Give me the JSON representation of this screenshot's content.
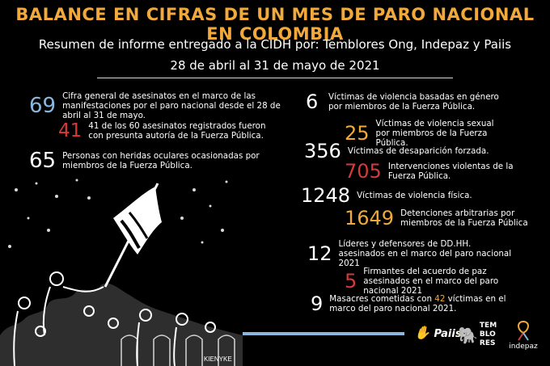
{
  "header": {
    "title": "BALANCE EN CIFRAS DE UN MES DE PARO NACIONAL EN COLOMBIA",
    "subtitle": "Resumen de informe entregado a la CIDH por: Temblores Ong, Indepaz y Paiis",
    "dates": "28 de abril al 31 de mayo de 2021"
  },
  "left_stats": [
    {
      "value": "69",
      "text": "Cifra general de asesinatos en el marco de las manifestaciones por el paro nacional desde el 28 de abril al 31 de mayo.",
      "color": "#8bb6df"
    },
    {
      "value": "41",
      "text": "41 de los 60 asesinatos registrados fueron con presunta autoría de la Fuerza Pública.",
      "color": "#d43a3a"
    },
    {
      "value": "65",
      "text": "Personas con heridas oculares ocasionadas por miembros de la Fuerza Pública.",
      "color": "#ffffff"
    }
  ],
  "right_stats": [
    {
      "value": "6",
      "text": "Víctimas de violencia basadas en género por miembros de la Fuerza Pública.",
      "color": "#ffffff"
    },
    {
      "value": "25",
      "text": "Víctimas de violencia sexual por miembros de la Fuerza Pública.",
      "color": "#f2a93b"
    },
    {
      "value": "356",
      "text": "Víctimas de desaparición forzada.",
      "color": "#ffffff"
    },
    {
      "value": "705",
      "text": "Intervenciones violentas de la Fuerza Pública.",
      "color": "#d43a3a"
    },
    {
      "value": "1248",
      "text": "Víctimas de violencia física.",
      "color": "#ffffff"
    },
    {
      "value": "1649",
      "text": "Detenciones arbitrarias por miembros de la Fuerza Pública",
      "color": "#f2a93b"
    },
    {
      "value": "12",
      "text": "Líderes y defensores de DD.HH. asesinados en el marco del paro nacional 2021",
      "color": "#ffffff"
    },
    {
      "value": "5",
      "text": "Firmantes del acuerdo de paz asesinados en el marco del paro nacional 2021",
      "color": "#d43a3a"
    },
    {
      "value": "9",
      "text_before": "Masacres cometidas con ",
      "highlight": "42",
      "text_after": " víctimas en el marco del paro nacional 2021.",
      "color": "#ffffff"
    }
  ],
  "logos": {
    "paiis": "Paiis",
    "temblores": "TEM BLO RES",
    "indepaz": "indepaz"
  },
  "image_caption": "KIENYKE"
}
